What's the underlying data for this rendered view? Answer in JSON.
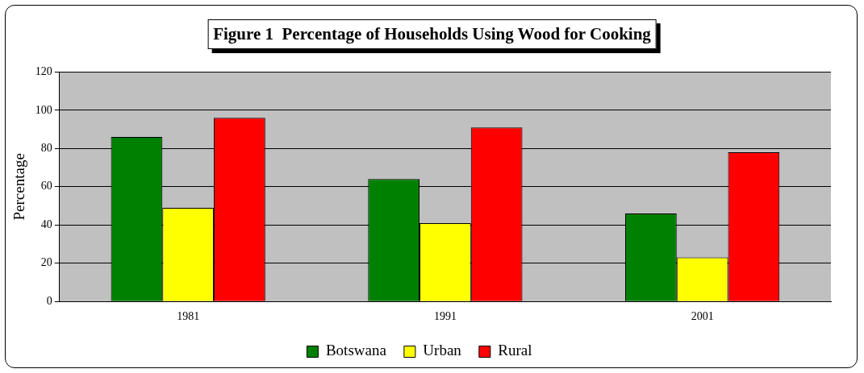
{
  "chart_data": {
    "type": "bar",
    "title": "Figure 1  Percentage of Households Using Wood for Cooking",
    "ylabel": "Percentage",
    "categories": [
      "1981",
      "1991",
      "2001"
    ],
    "series": [
      {
        "name": "Botswana",
        "color": "#008000",
        "values": [
          86,
          64,
          46
        ]
      },
      {
        "name": "Urban",
        "color": "#ffff00",
        "values": [
          49,
          41,
          23
        ]
      },
      {
        "name": "Rural",
        "color": "#ff0000",
        "values": [
          96,
          91,
          78
        ]
      }
    ],
    "ylim": [
      0,
      120
    ],
    "yticks": [
      0,
      20,
      40,
      60,
      80,
      100,
      120
    ],
    "grid": "y",
    "legend": "bottom"
  }
}
